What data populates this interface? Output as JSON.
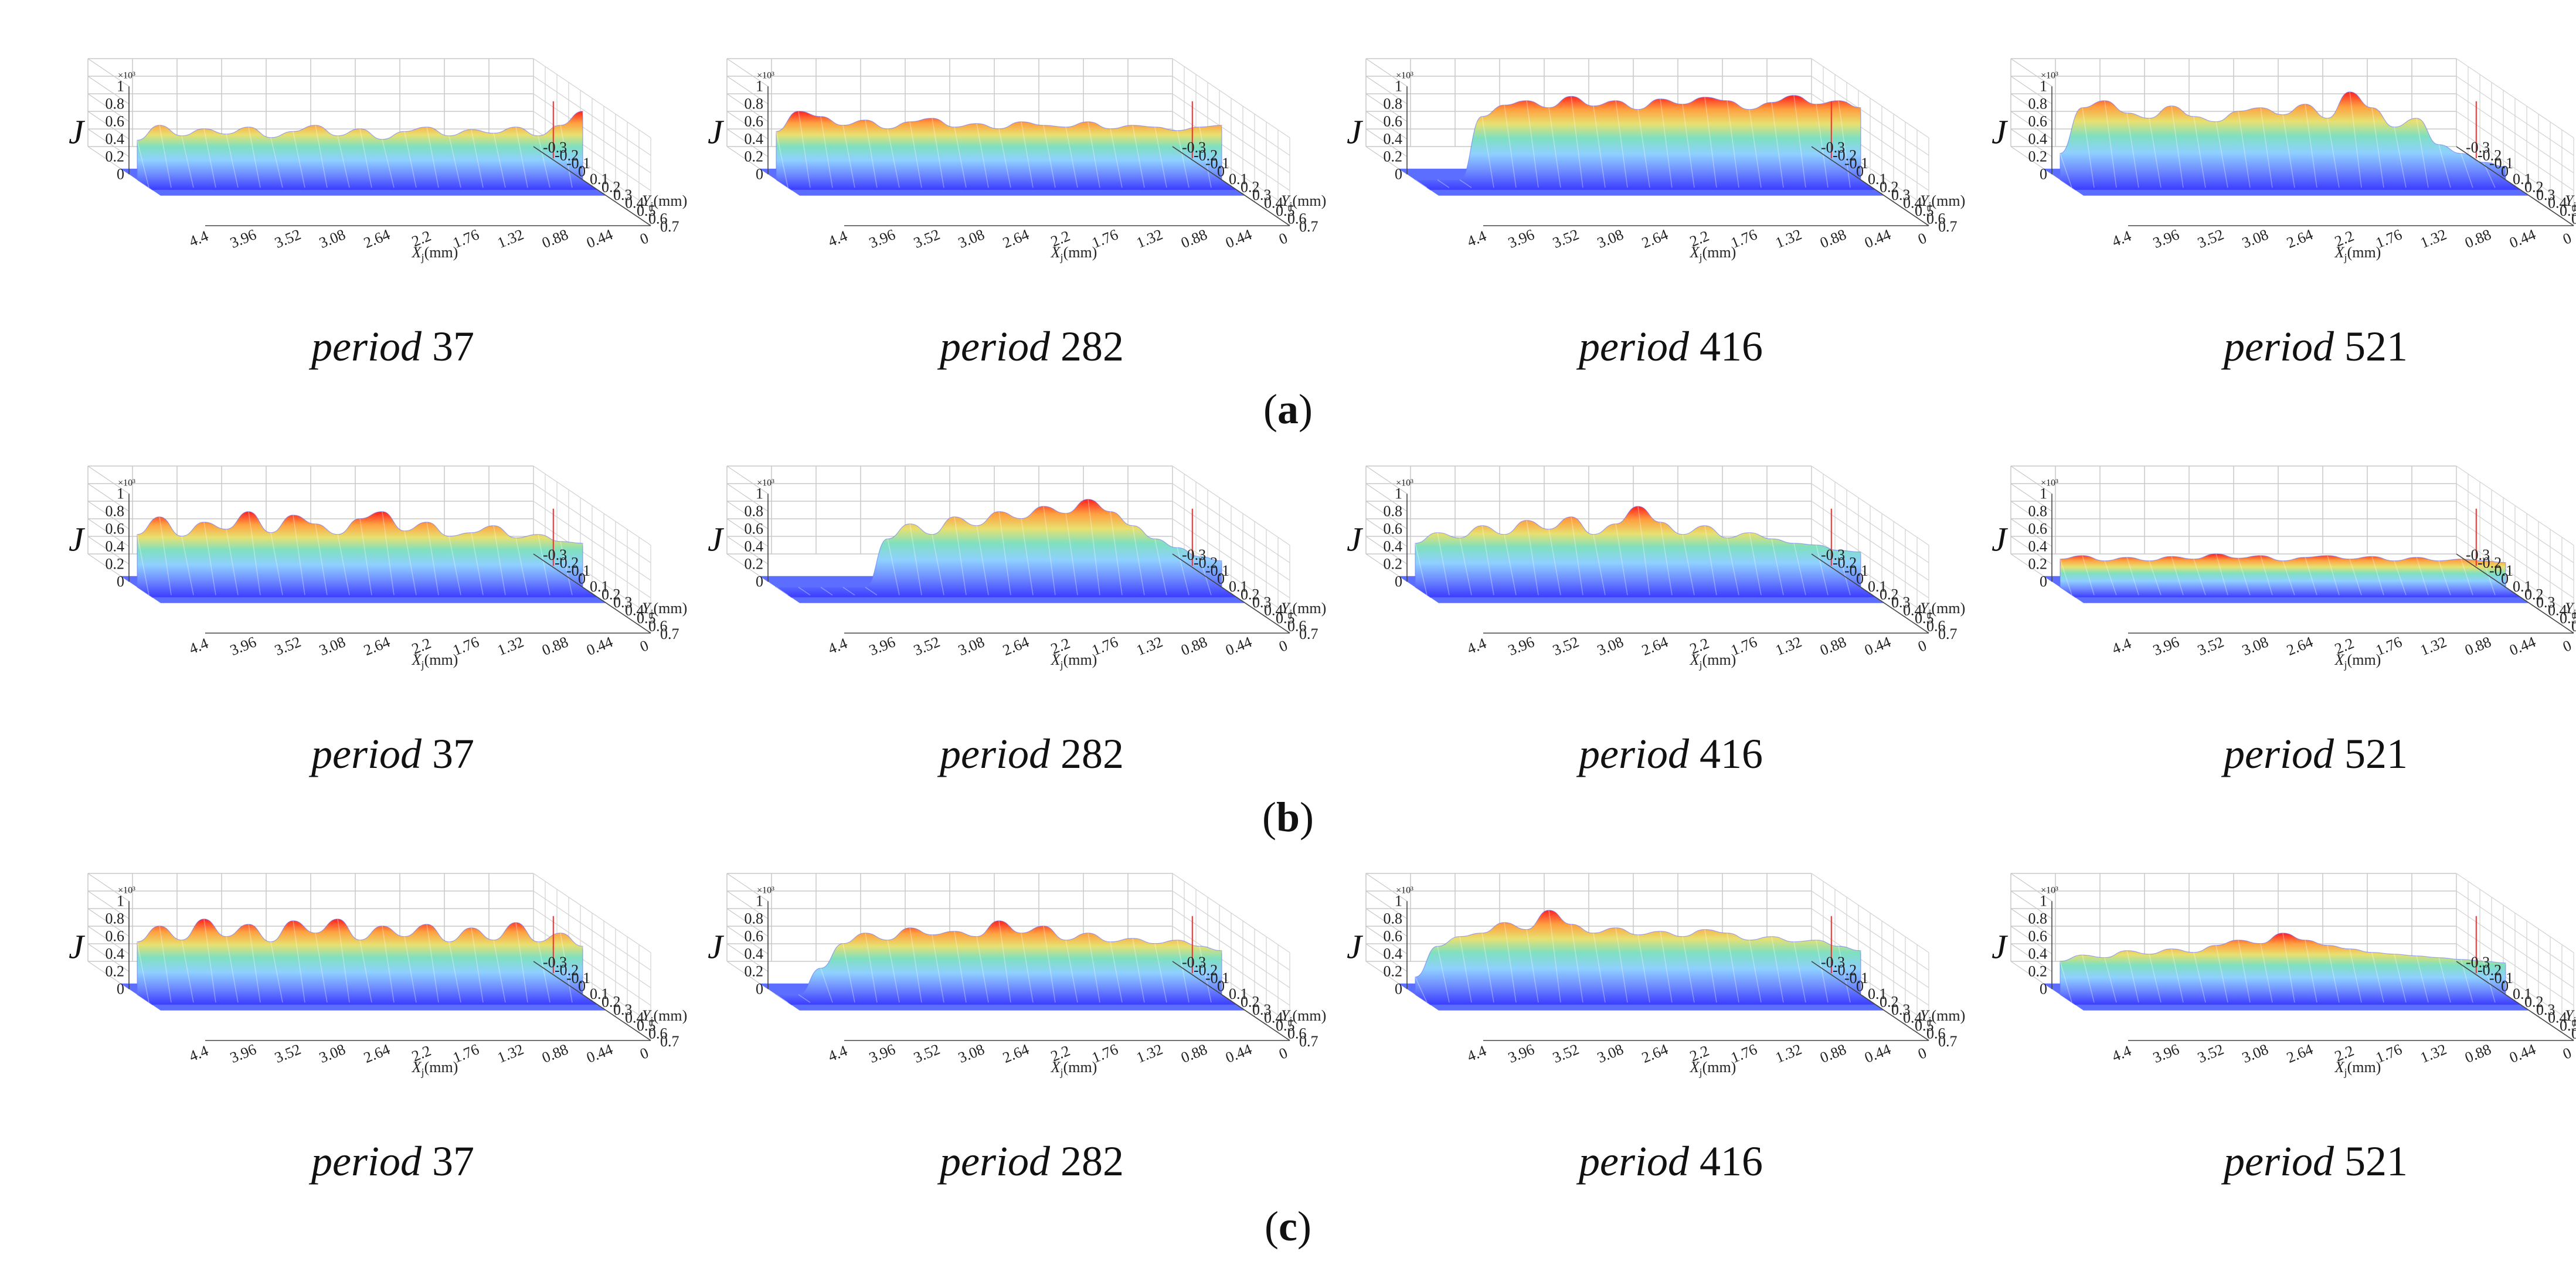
{
  "figure": {
    "rows": [
      {
        "label_pre": "(",
        "label": "a",
        "label_post": ")"
      },
      {
        "label_pre": "(",
        "label": "b",
        "label_post": ")"
      },
      {
        "label_pre": "(",
        "label": "c",
        "label_post": ")"
      }
    ],
    "period_word": "period",
    "z_label": "J",
    "z_scale": "×10³",
    "x_label_sym": "X",
    "x_label_sub": "j",
    "x_label_unit": "(mm)",
    "y_label_sym": "Y",
    "y_label_sub": "j",
    "y_label_unit": "(mm)"
  },
  "chart_data": {
    "type": "surface3d",
    "colormap": "jet",
    "x_ticks": [
      "4.4",
      "3.96",
      "3.52",
      "3.08",
      "2.64",
      "2.2",
      "1.76",
      "1.32",
      "0.88",
      "0.44",
      "0"
    ],
    "y_ticks": [
      "0.7",
      "0.6",
      "0.5",
      "0.4",
      "0.3",
      "0.2",
      "0.1",
      "0",
      "-0.1",
      "-0.2",
      "-0.3"
    ],
    "z_ticks": [
      "0",
      "0.2",
      "0.4",
      "0.6",
      "0.8",
      "1"
    ],
    "xlim": [
      0,
      4.4
    ],
    "ylim": [
      -0.3,
      0.7
    ],
    "zlim": [
      0,
      1
    ],
    "panels": [
      {
        "row": "a",
        "period": "37",
        "profile": [
          0.45,
          0.62,
          0.5,
          0.58,
          0.52,
          0.6,
          0.48,
          0.55,
          0.62,
          0.5,
          0.58,
          0.46,
          0.55,
          0.6,
          0.5,
          0.57,
          0.53,
          0.6,
          0.5,
          0.62,
          0.78
        ]
      },
      {
        "row": "a",
        "period": "282",
        "profile": [
          0.55,
          0.78,
          0.72,
          0.62,
          0.68,
          0.58,
          0.66,
          0.7,
          0.6,
          0.64,
          0.58,
          0.66,
          0.62,
          0.6,
          0.66,
          0.58,
          0.62,
          0.6,
          0.56,
          0.6,
          0.62
        ]
      },
      {
        "row": "a",
        "period": "416",
        "profile": [
          0.0,
          0.0,
          0.0,
          0.72,
          0.85,
          0.9,
          0.82,
          0.95,
          0.84,
          0.9,
          0.8,
          0.92,
          0.86,
          0.94,
          0.9,
          0.8,
          0.88,
          0.96,
          0.86,
          0.9,
          0.82
        ]
      },
      {
        "row": "a",
        "period": "521",
        "profile": [
          0.3,
          0.82,
          0.9,
          0.76,
          0.7,
          0.84,
          0.72,
          0.66,
          0.78,
          0.82,
          0.74,
          0.86,
          0.7,
          1.0,
          0.82,
          0.6,
          0.7,
          0.4,
          0.3,
          0.2,
          0.15
        ]
      },
      {
        "row": "b",
        "period": "37",
        "profile": [
          0.6,
          0.8,
          0.58,
          0.74,
          0.66,
          0.86,
          0.62,
          0.82,
          0.72,
          0.6,
          0.78,
          0.86,
          0.64,
          0.74,
          0.58,
          0.62,
          0.7,
          0.56,
          0.6,
          0.52,
          0.5
        ]
      },
      {
        "row": "b",
        "period": "282",
        "profile": [
          0.0,
          0.0,
          0.0,
          0.0,
          0.0,
          0.55,
          0.72,
          0.6,
          0.8,
          0.7,
          0.86,
          0.78,
          0.92,
          0.84,
          1.0,
          0.86,
          0.7,
          0.55,
          0.45,
          0.35,
          0.3
        ]
      },
      {
        "row": "b",
        "period": "416",
        "profile": [
          0.5,
          0.62,
          0.56,
          0.7,
          0.6,
          0.76,
          0.66,
          0.8,
          0.6,
          0.72,
          0.92,
          0.74,
          0.6,
          0.7,
          0.56,
          0.62,
          0.55,
          0.5,
          0.48,
          0.42,
          0.4
        ]
      },
      {
        "row": "b",
        "period": "521",
        "profile": [
          0.32,
          0.36,
          0.3,
          0.34,
          0.3,
          0.35,
          0.32,
          0.38,
          0.33,
          0.36,
          0.3,
          0.34,
          0.36,
          0.32,
          0.35,
          0.3,
          0.34,
          0.3,
          0.32,
          0.3,
          0.28
        ]
      },
      {
        "row": "c",
        "period": "37",
        "profile": [
          0.6,
          0.78,
          0.62,
          0.86,
          0.66,
          0.8,
          0.6,
          0.84,
          0.7,
          0.86,
          0.62,
          0.78,
          0.66,
          0.8,
          0.6,
          0.76,
          0.62,
          0.82,
          0.6,
          0.7,
          0.55
        ]
      },
      {
        "row": "c",
        "period": "282",
        "profile": [
          0.0,
          0.0,
          0.3,
          0.58,
          0.7,
          0.62,
          0.76,
          0.68,
          0.72,
          0.66,
          0.84,
          0.7,
          0.78,
          0.62,
          0.7,
          0.6,
          0.64,
          0.58,
          0.62,
          0.55,
          0.5
        ]
      },
      {
        "row": "c",
        "period": "416",
        "profile": [
          0.2,
          0.55,
          0.66,
          0.7,
          0.82,
          0.74,
          0.96,
          0.8,
          0.7,
          0.76,
          0.68,
          0.72,
          0.66,
          0.74,
          0.7,
          0.62,
          0.66,
          0.6,
          0.62,
          0.55,
          0.5
        ]
      },
      {
        "row": "c",
        "period": "521",
        "profile": [
          0.38,
          0.45,
          0.42,
          0.5,
          0.46,
          0.52,
          0.48,
          0.56,
          0.62,
          0.58,
          0.7,
          0.62,
          0.56,
          0.52,
          0.48,
          0.46,
          0.44,
          0.42,
          0.4,
          0.38,
          0.36
        ]
      }
    ]
  }
}
